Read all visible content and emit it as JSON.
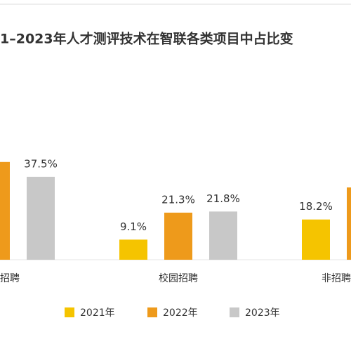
{
  "chart_data": {
    "type": "bar",
    "title": "1–2023年人才测评技术在智联各类项目中占比变",
    "categories": [
      "招聘",
      "校园招聘",
      "非招聘"
    ],
    "series": [
      {
        "name": "2021年",
        "color": "#f5c400",
        "values": [
          null,
          9.1,
          18.2
        ],
        "value_labels": [
          null,
          "9.1%",
          "18.2%"
        ]
      },
      {
        "name": "2022年",
        "color": "#ee9a1b",
        "values": [
          44.2,
          21.3,
          32.7
        ],
        "value_labels": [
          null,
          "21.3%",
          null
        ]
      },
      {
        "name": "2023年",
        "color": "#c8c8c8",
        "values": [
          37.5,
          21.8,
          null
        ],
        "value_labels": [
          "37.5%",
          "21.8%",
          null
        ]
      }
    ]
  }
}
